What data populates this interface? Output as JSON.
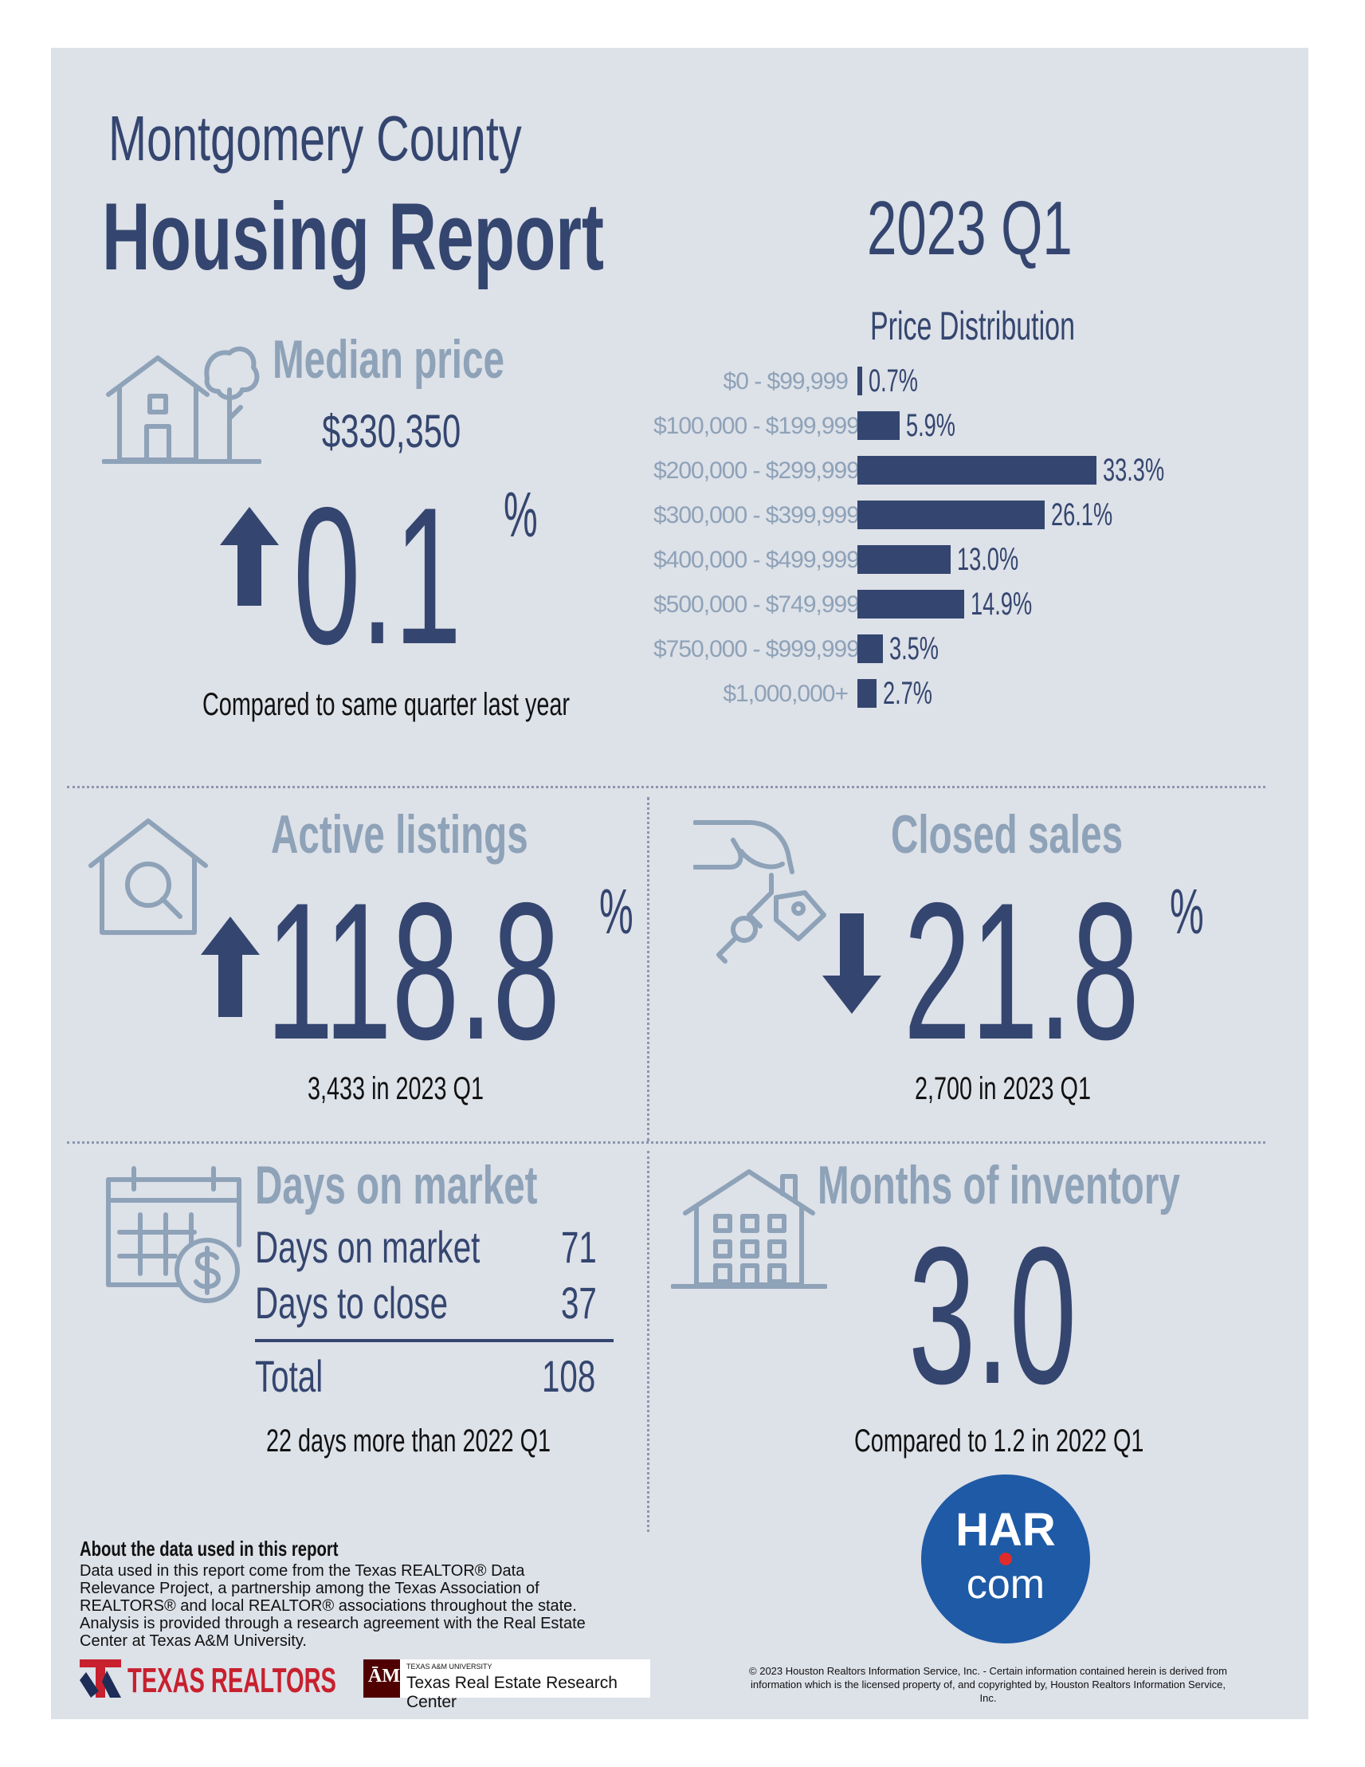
{
  "header": {
    "county": "Montgomery County",
    "report": "Housing Report",
    "quarter": "2023 Q1"
  },
  "median_price": {
    "label": "Median price",
    "value": "$330,350",
    "change": "0.1",
    "unit": "%",
    "direction": "up",
    "caption": "Compared to same quarter last year"
  },
  "chart_data": {
    "type": "bar",
    "orientation": "horizontal",
    "title": "Price Distribution",
    "categories": [
      "$0 - $99,999",
      "$100,000 - $199,999",
      "$200,000 - $299,999",
      "$300,000 - $399,999",
      "$400,000 - $499,999",
      "$500,000 - $749,999",
      "$750,000 - $999,999",
      "$1,000,000+"
    ],
    "values": [
      0.7,
      5.9,
      33.3,
      26.1,
      13.0,
      14.9,
      3.5,
      2.7
    ],
    "value_labels": [
      "0.7%",
      "5.9%",
      "33.3%",
      "26.1%",
      "13.0%",
      "14.9%",
      "3.5%",
      "2.7%"
    ],
    "xlim": [
      0,
      33.3
    ],
    "color": "#34466f"
  },
  "active_listings": {
    "label": "Active listings",
    "change": "118.8",
    "unit": "%",
    "direction": "up",
    "caption": "3,433 in 2023 Q1"
  },
  "closed_sales": {
    "label": "Closed sales",
    "change": "21.8",
    "unit": "%",
    "direction": "down",
    "caption": "2,700 in 2023 Q1"
  },
  "days_on_market": {
    "label": "Days on market",
    "rows": [
      {
        "label": "Days on market",
        "value": "71"
      },
      {
        "label": "Days to close",
        "value": "37"
      }
    ],
    "total_label": "Total",
    "total_value": "108",
    "caption": "22 days more than 2022 Q1"
  },
  "months_inventory": {
    "label": "Months of inventory",
    "value": "3.0",
    "caption": "Compared to 1.2 in 2022 Q1"
  },
  "about": {
    "heading": "About the data used in this report",
    "text": "Data used in this report come from the Texas REALTOR® Data Relevance Project, a partnership among the Texas Association of REALTORS® and local REALTOR® associations throughout the state. Analysis is provided through a research agreement with the Real Estate Center at Texas A&M University."
  },
  "logos": {
    "texas_realtors": "TEXAS REALTORS",
    "tamu_small": "TEXAS A&M UNIVERSITY",
    "tamu_center": "Texas Real Estate Research Center",
    "har_top": "HAR",
    "har_bottom": "com"
  },
  "copyright": "© 2023 Houston Realtors Information Service, Inc. - Certain information contained herein is derived from information which is the licensed property of, and copyrighted by, Houston Realtors Information Service, Inc.",
  "colors": {
    "navy": "#34466f",
    "light": "#8ea2b8",
    "panel": "#dde1e8",
    "har_blue": "#1f5aa6",
    "realtor_red": "#c8202e"
  }
}
